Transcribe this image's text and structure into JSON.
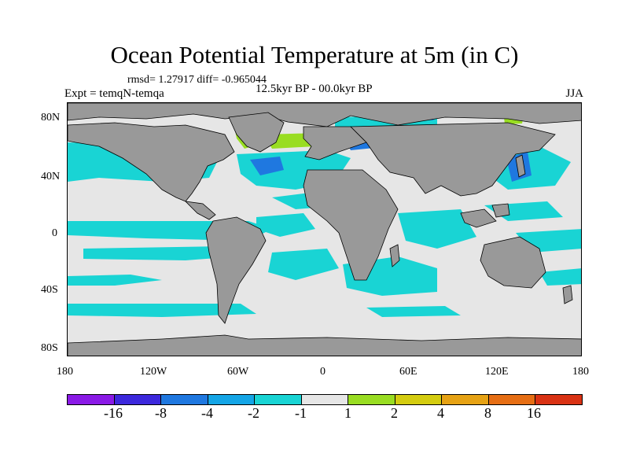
{
  "title": "Ocean Potential Temperature at 5m (in C)",
  "stats_line": "rmsd= 1.27917  diff= -0.965044",
  "experiment_label": "Expt = temqN-temqa",
  "period_label": "12.5kyr BP - 00.0kyr BP",
  "season_label": "JJA",
  "map": {
    "lat_ticks": [
      "80N",
      "40N",
      "0",
      "40S",
      "80S"
    ],
    "lon_ticks": [
      "180",
      "120W",
      "60W",
      "0",
      "60E",
      "120E",
      "180"
    ],
    "land_color": "#999999",
    "no_change_color": "#e6e6e6",
    "cooling_color": "#19d4d4",
    "strong_cooling_color": "#1f78e0",
    "warming_color": "#99dd22"
  },
  "colorbar": {
    "labels": [
      "-16",
      "-8",
      "-4",
      "-2",
      "-1",
      "1",
      "2",
      "4",
      "8",
      "16"
    ],
    "colors": [
      "#8a1ae6",
      "#3c28dc",
      "#1f78e0",
      "#14a5e6",
      "#19d4d4",
      "#e6e6e6",
      "#99dd22",
      "#d4cc10",
      "#e6a214",
      "#e66e14",
      "#d93214"
    ]
  }
}
